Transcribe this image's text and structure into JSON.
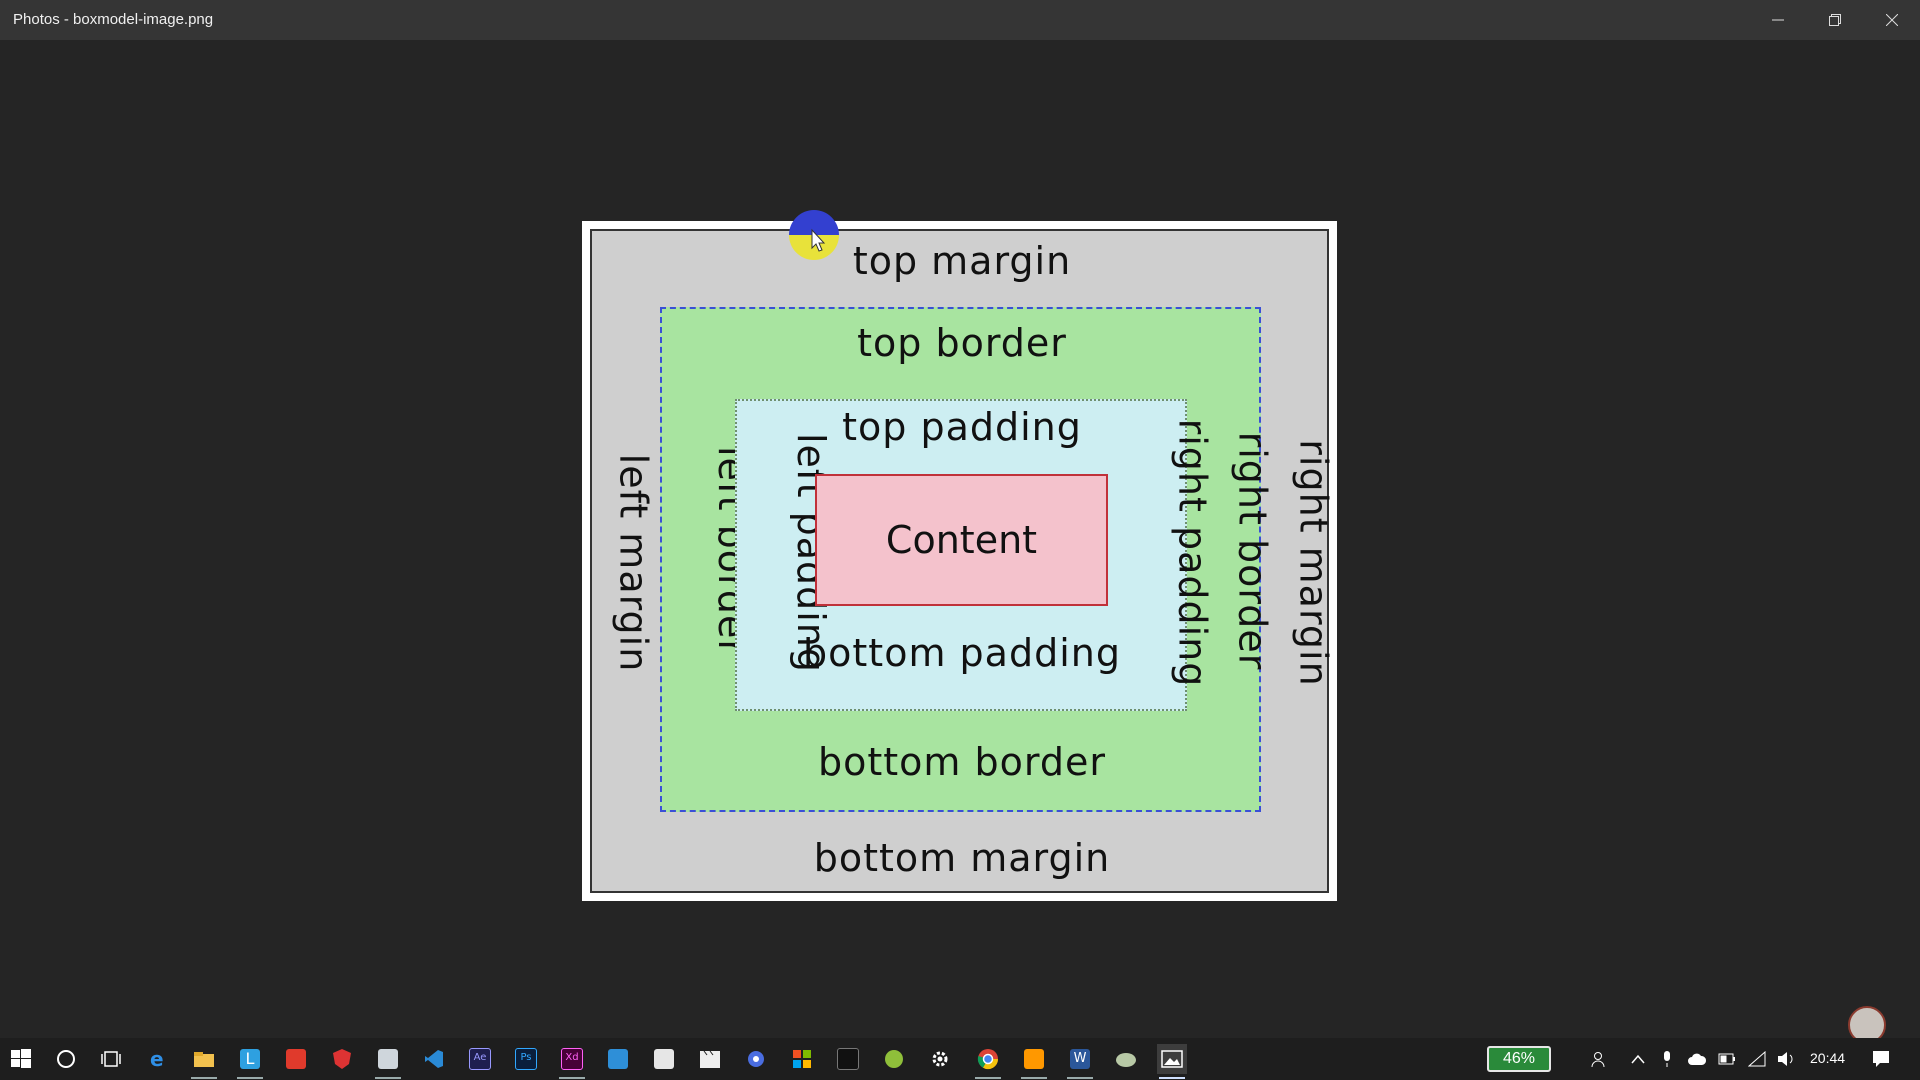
{
  "window": {
    "title": "Photos - boxmodel-image.png",
    "controls": [
      "minimize-icon",
      "restore-icon",
      "close-icon"
    ]
  },
  "diagram": {
    "top_margin": "top margin",
    "bottom_margin": "bottom margin",
    "left_margin": "left margin",
    "right_margin": "right margin",
    "top_border": "top border",
    "bottom_border": "bottom border",
    "left_border": "left border",
    "right_border": "right border",
    "top_padding": "top padding",
    "bottom_padding": "bottom padding",
    "left_padding": "left padding",
    "right_padding": "right padding",
    "content": "Content",
    "colors": {
      "margin": "#cfcfcf",
      "border": "#a8e4a0",
      "border_line": "#3a4fd6",
      "padding": "#cdeef2",
      "content": "#f4c2cc",
      "content_line": "#c0313a"
    }
  },
  "taskbar": {
    "apps": [
      "windows-start-icon",
      "cortana-icon",
      "task-view-icon",
      "edge-icon",
      "file-explorer-icon",
      "app-l-icon",
      "app-red-icon",
      "app-shield-icon",
      "app-folder-icon",
      "vscode-icon",
      "after-effects-icon",
      "photoshop-icon",
      "adobe-xd-icon",
      "app-window-icon",
      "app-mail-icon",
      "app-clapper-icon",
      "app-chat-icon",
      "app-store-icon",
      "terminal-icon",
      "app-green-icon",
      "settings-icon",
      "chrome-icon",
      "sublime-icon",
      "word-icon",
      "app-paint-icon",
      "photos-icon"
    ],
    "battery_percent": "46%",
    "clock": "20:44",
    "tray": [
      "people-icon",
      "chevron-up-icon",
      "mic-icon",
      "cloud-icon",
      "battery-icon",
      "wifi-icon",
      "volume-icon",
      "notification-icon"
    ]
  }
}
